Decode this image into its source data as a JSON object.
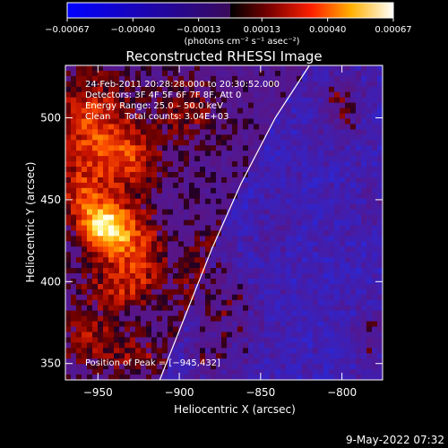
{
  "chart_data": {
    "type": "heatmap",
    "title": "Reconstructed RHESSI Image",
    "xlabel": "Heliocentric X (arcsec)",
    "ylabel": "Heliocentric Y (arcsec)",
    "xlim": [
      -970,
      -775
    ],
    "ylim": [
      340,
      532
    ],
    "xticks": [
      -950,
      -900,
      -850,
      -800
    ],
    "xtick_labels": [
      "−950",
      "−900",
      "−850",
      "−800"
    ],
    "yticks": [
      350,
      400,
      450,
      500
    ],
    "ytick_labels": [
      "350",
      "400",
      "450",
      "500"
    ],
    "colorbar": {
      "range": [
        -0.00067,
        0.00067
      ],
      "ticks": [
        -0.00067,
        -0.0004,
        -0.00013,
        0.00013,
        0.0004,
        0.00067
      ],
      "tick_labels": [
        "−0.00067",
        "−0.00040",
        "−0.00013",
        "0.00013",
        "0.00040",
        "0.00067"
      ],
      "units": "(photons cm⁻² s⁻¹ asec⁻²)",
      "colormap": "blue-purple-red-yellow-white"
    },
    "annotations": [
      "24‑Feb‑2011 20:28:28.000 to 20:30:52.000",
      "Detectors: 3F 4F 5F 6F 7F 8F, Att 0",
      "Energy Range: 25.0 – 50.0 keV",
      "Clean     Total counts: 3.04E+03"
    ],
    "peak_label": "Position of Peak = [−945,432]",
    "peak": [
      -945,
      432
    ],
    "limb_points": [
      [
        -912,
        340
      ],
      [
        -896,
        380
      ],
      [
        -880,
        420
      ],
      [
        -862,
        460
      ],
      [
        -841,
        500
      ],
      [
        -820,
        532
      ]
    ],
    "sources": [
      {
        "x": -945,
        "y": 432,
        "amp": 1.0,
        "sx": 10,
        "sy": 12
      },
      {
        "x": -955,
        "y": 495,
        "amp": 0.55,
        "sx": 18,
        "sy": 22
      },
      {
        "x": -930,
        "y": 475,
        "amp": 0.45,
        "sx": 14,
        "sy": 14
      },
      {
        "x": -960,
        "y": 450,
        "amp": 0.45,
        "sx": 10,
        "sy": 14
      },
      {
        "x": -925,
        "y": 420,
        "amp": 0.5,
        "sx": 12,
        "sy": 18
      },
      {
        "x": -940,
        "y": 395,
        "amp": 0.35,
        "sx": 16,
        "sy": 10
      },
      {
        "x": -955,
        "y": 365,
        "amp": 0.35,
        "sx": 14,
        "sy": 12
      },
      {
        "x": -925,
        "y": 355,
        "amp": 0.3,
        "sx": 12,
        "sy": 10
      },
      {
        "x": -895,
        "y": 505,
        "amp": 0.35,
        "sx": 12,
        "sy": 14
      },
      {
        "x": -878,
        "y": 395,
        "amp": 0.5,
        "sx": 14,
        "sy": 20
      },
      {
        "x": -882,
        "y": 355,
        "amp": 0.4,
        "sx": 10,
        "sy": 14
      },
      {
        "x": -860,
        "y": 370,
        "amp": 0.3,
        "sx": 8,
        "sy": 14
      },
      {
        "x": -800,
        "y": 510,
        "amp": 0.55,
        "sx": 10,
        "sy": 16
      },
      {
        "x": -780,
        "y": 445,
        "amp": 0.3,
        "sx": 8,
        "sy": 10
      },
      {
        "x": -782,
        "y": 365,
        "amp": 0.45,
        "sx": 6,
        "sy": 14
      },
      {
        "x": -840,
        "y": 435,
        "amp": 0.2,
        "sx": 8,
        "sy": 8
      }
    ]
  },
  "footer": {
    "timestamp": "9‑May‑2022 07:32"
  }
}
